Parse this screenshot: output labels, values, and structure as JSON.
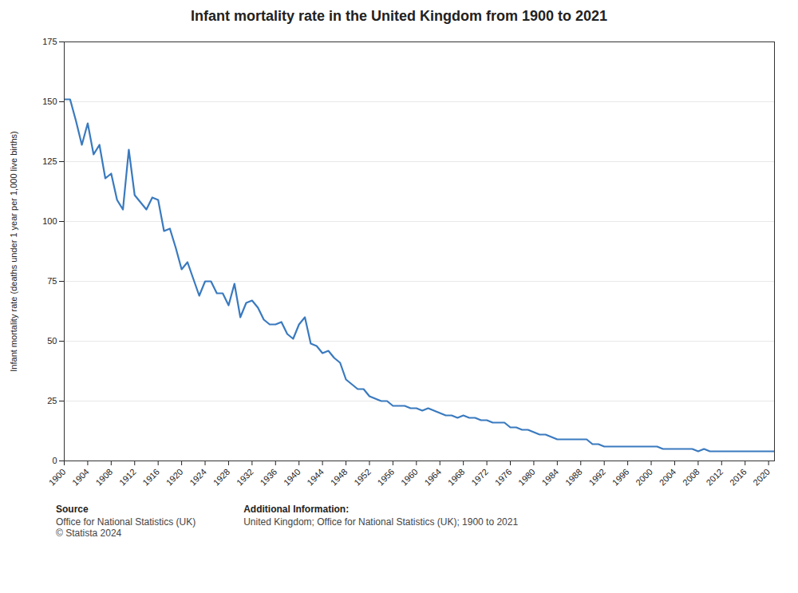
{
  "chart_data": {
    "type": "line",
    "title": "Infant mortality rate in the United Kingdom from 1900 to 2021",
    "ylabel": "Infant mortality rate (deaths under 1 year per 1,000 live births)",
    "color": "#3a7abf",
    "grid": true,
    "xlim": [
      1900,
      2021
    ],
    "xticks": [
      1900,
      1904,
      1908,
      1912,
      1916,
      1920,
      1924,
      1928,
      1932,
      1936,
      1940,
      1944,
      1948,
      1952,
      1956,
      1960,
      1964,
      1968,
      1972,
      1976,
      1980,
      1984,
      1988,
      1992,
      1996,
      2000,
      2004,
      2008,
      2012,
      2016,
      2020
    ],
    "ylim": [
      0,
      175
    ],
    "yticks": [
      0,
      25,
      50,
      75,
      100,
      125,
      150,
      175
    ],
    "annotations": [
      "Source",
      "Office for National Statistics (UK)\n© Statista 2024",
      "Additional Information:",
      "United Kingdom; Office for National Statistics (UK); 1900 to 2021"
    ],
    "x": [
      1900,
      1901,
      1902,
      1903,
      1904,
      1905,
      1906,
      1907,
      1908,
      1909,
      1910,
      1911,
      1912,
      1913,
      1914,
      1915,
      1916,
      1917,
      1918,
      1919,
      1920,
      1921,
      1922,
      1923,
      1924,
      1925,
      1926,
      1927,
      1928,
      1929,
      1930,
      1931,
      1932,
      1933,
      1934,
      1935,
      1936,
      1937,
      1938,
      1939,
      1940,
      1941,
      1942,
      1943,
      1944,
      1945,
      1946,
      1947,
      1948,
      1949,
      1950,
      1951,
      1952,
      1953,
      1954,
      1955,
      1956,
      1957,
      1958,
      1959,
      1960,
      1961,
      1962,
      1963,
      1964,
      1965,
      1966,
      1967,
      1968,
      1969,
      1970,
      1971,
      1972,
      1973,
      1974,
      1975,
      1976,
      1977,
      1978,
      1979,
      1980,
      1981,
      1982,
      1983,
      1984,
      1985,
      1986,
      1987,
      1988,
      1989,
      1990,
      1991,
      1992,
      1993,
      1994,
      1995,
      1996,
      1997,
      1998,
      1999,
      2000,
      2001,
      2002,
      2003,
      2004,
      2005,
      2006,
      2007,
      2008,
      2009,
      2010,
      2011,
      2012,
      2013,
      2014,
      2015,
      2016,
      2017,
      2018,
      2019,
      2020,
      2021
    ],
    "values": [
      151,
      151,
      142,
      132,
      141,
      128,
      132,
      118,
      120,
      109,
      105,
      130,
      111,
      108,
      105,
      110,
      109,
      96,
      97,
      89,
      80,
      83,
      76,
      69,
      75,
      75,
      70,
      70,
      65,
      74,
      60,
      66,
      67,
      64,
      59,
      57,
      57,
      58,
      53,
      51,
      57,
      60,
      49,
      48,
      45,
      46,
      43,
      41,
      34,
      32,
      30,
      30,
      27,
      26,
      25,
      25,
      23,
      23,
      23,
      22,
      22,
      21,
      22,
      21,
      20,
      19,
      19,
      18,
      19,
      18,
      18,
      17,
      17,
      16,
      16,
      16,
      14,
      14,
      13,
      13,
      12,
      11,
      11,
      10,
      9,
      9,
      9,
      9,
      9,
      9,
      7,
      7,
      6,
      6,
      6,
      6,
      6,
      6,
      6,
      6,
      6,
      6,
      5,
      5,
      5,
      5,
      5,
      5,
      4,
      5,
      4,
      4,
      4,
      4,
      4,
      4,
      4,
      4,
      4,
      4,
      4,
      4
    ]
  }
}
